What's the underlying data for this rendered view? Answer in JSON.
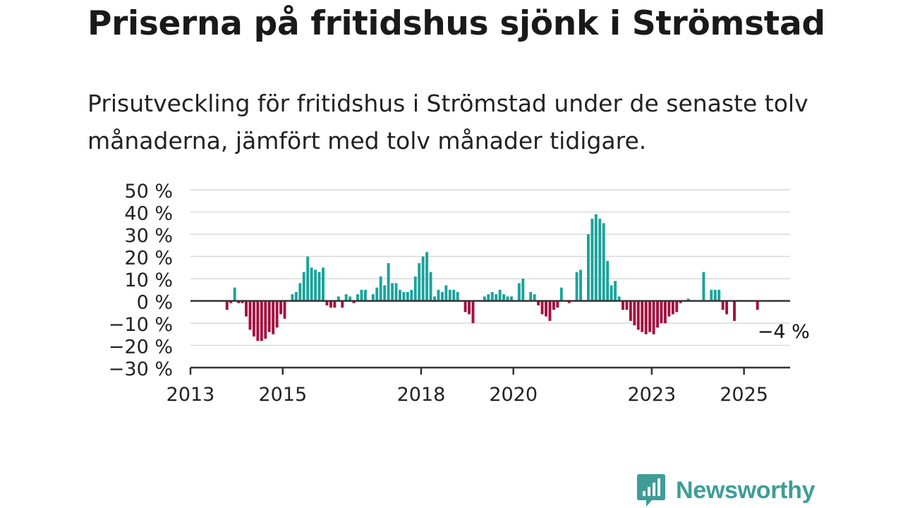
{
  "title": "Priserna på fritidshus sjönk i Strömstad",
  "subtitle": "Prisutveckling för fritidshus i Strömstad under de senaste tolv månaderna, jämfört med tolv månader tidigare.",
  "brand": {
    "name": "Newsworthy",
    "logo_icon": "bar-chart-speech-bubble-icon"
  },
  "colors": {
    "positive": "#1aa39b",
    "negative": "#a3123f",
    "grid": "#d9d9d9",
    "axis": "#333333",
    "logo": "#3f9d98"
  },
  "chart_data": {
    "type": "bar",
    "title": "Priserna på fritidshus sjönk i Strömstad",
    "xlabel": "",
    "ylabel": "",
    "ylim": [
      -30,
      50
    ],
    "yticks": [
      -30,
      -20,
      -10,
      0,
      10,
      20,
      30,
      40,
      50
    ],
    "ytick_labels": [
      "−30 %",
      "−20 %",
      "−10 %",
      "0 %",
      "10 %",
      "20 %",
      "30 %",
      "40 %",
      "50 %"
    ],
    "xlim": [
      "2013-01",
      "2026-01"
    ],
    "xticks": [
      "2013-01",
      "2015-01",
      "2018-01",
      "2020-01",
      "2023-01",
      "2025-01"
    ],
    "xtick_labels": [
      "2013",
      "2015",
      "2018",
      "2020",
      "2023",
      "2025"
    ],
    "grid": true,
    "start_month": "2013-10",
    "values": [
      -4,
      -1,
      6,
      -1,
      -1,
      -7,
      -13,
      -16,
      -18,
      -18,
      -17,
      -14,
      -15,
      -12,
      -6,
      -8,
      null,
      3,
      4,
      8,
      13,
      20,
      15,
      14,
      13,
      15,
      -2,
      -3,
      -3,
      2,
      -3,
      3,
      2,
      -1,
      3,
      5,
      5,
      null,
      3,
      6,
      11,
      7,
      17,
      8,
      8,
      5,
      4,
      4,
      5,
      11,
      17,
      20,
      22,
      13,
      2,
      5,
      4,
      7,
      5,
      5,
      4,
      null,
      -5,
      -6,
      -10,
      null,
      null,
      2,
      3,
      4,
      3,
      5,
      3,
      2,
      2,
      null,
      8,
      10,
      null,
      4,
      3,
      -2,
      -6,
      -7,
      -9,
      -4,
      -3,
      6,
      null,
      -1,
      null,
      13,
      14,
      null,
      30,
      37,
      39,
      37,
      35,
      18,
      7,
      9,
      2,
      -4,
      -4,
      -9,
      -11,
      -13,
      -14,
      -15,
      -14,
      -15,
      -12,
      -10,
      -10,
      -7,
      -6,
      -5,
      -1,
      null,
      1,
      null,
      null,
      null,
      13,
      null,
      5,
      5,
      5,
      -4,
      -6,
      null,
      -9,
      null,
      null,
      null,
      null,
      null,
      -4
    ],
    "annotation": {
      "text": "−4 %",
      "month": "2025-08",
      "value": -4
    }
  }
}
